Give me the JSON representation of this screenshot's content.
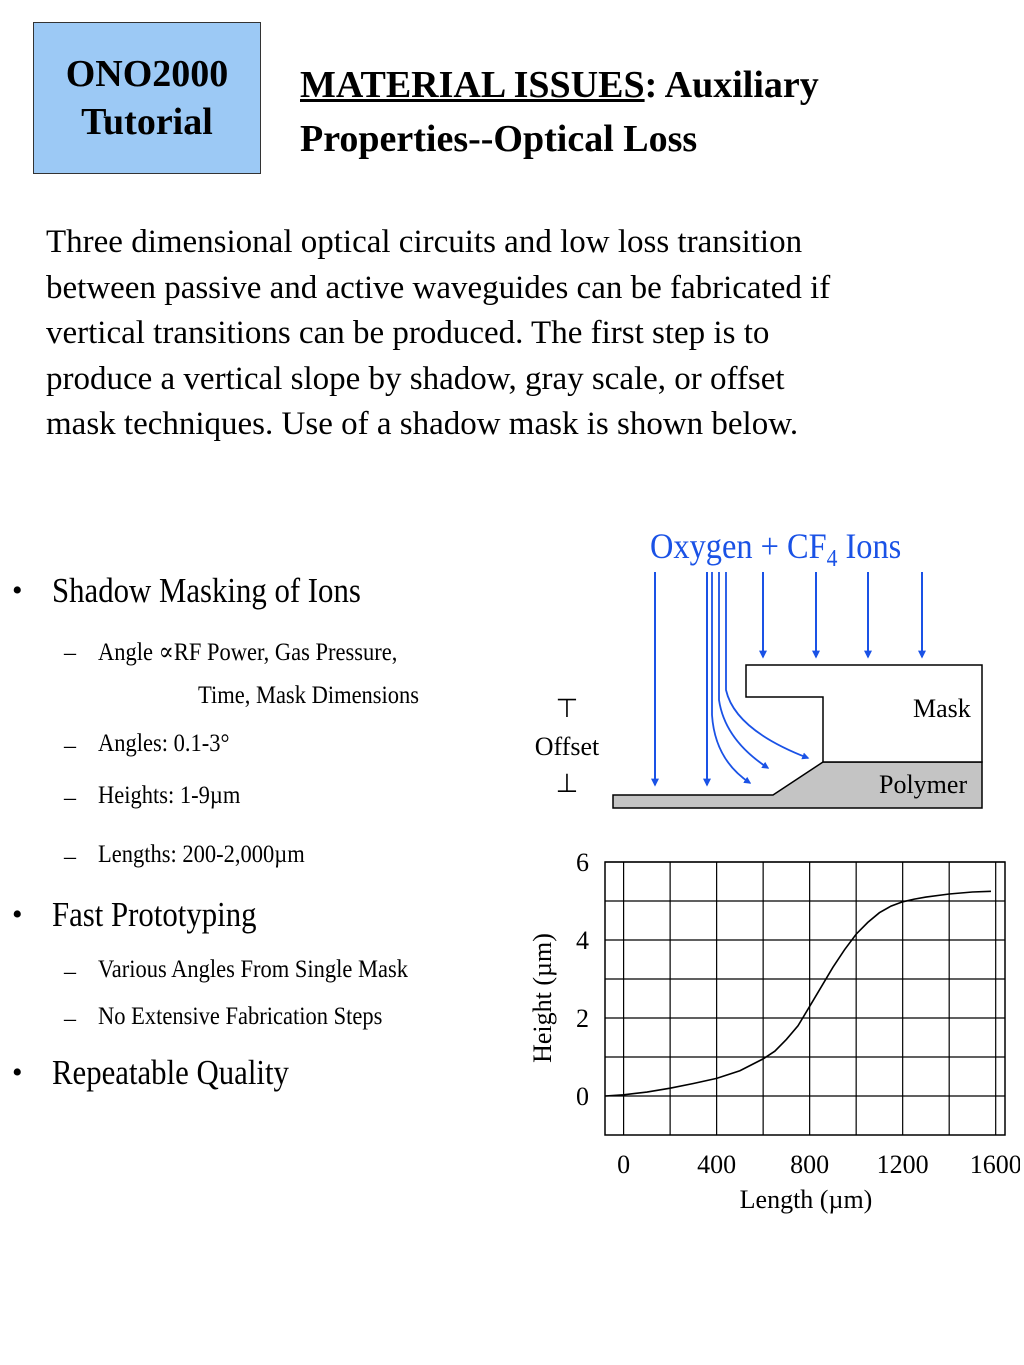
{
  "badge": {
    "line1": "ONO2000",
    "line2": "Tutorial"
  },
  "title": {
    "underlined": "MATERIAL ISSUES",
    "rest": ":  Auxiliary",
    "line2": "Properties--Optical Loss"
  },
  "intro": [
    "Three dimensional optical circuits and low loss transition",
    "between passive and active waveguides can be fabricated if",
    "vertical transitions can be produced.  The first step is to",
    "produce a vertical slope by shadow, gray scale, or offset",
    "mask techniques.  Use of a shadow mask is shown below."
  ],
  "bullets": {
    "b1": "Shadow Masking of Ions",
    "b1_sub": {
      "angle_a": "Angle ",
      "angle_sym": "∝",
      "angle_b": "RF Power, Gas Pressure,",
      "angle_c": "Time, Mask Dimensions",
      "angles": "Angles:   0.1-3°",
      "heights": "Heights:  1-9µm",
      "lengths": "Lengths:  200-2,000µm"
    },
    "b2": "Fast Prototyping",
    "b2_sub": {
      "s1": "Various Angles From Single Mask",
      "s2": "No Extensive Fabrication Steps"
    },
    "b3": "Repeatable Quality",
    "bullet_char": "•",
    "dash_char": "–"
  },
  "diagram": {
    "ions_label_a": "Oxygen + CF",
    "ions_label_sub": "4",
    "ions_label_b": " Ions",
    "mask_label": "Mask",
    "polymer_label": "Polymer",
    "offset_label": "Offset",
    "offset_top": "⊤",
    "offset_bottom": "⊥",
    "arrow_color": "#1a52e6",
    "polymer_color": "#c4c4c4"
  },
  "chart_data": {
    "type": "line",
    "xlabel": "Length (µm)",
    "ylabel": "Height (µm)",
    "xlim": [
      -80,
      1640
    ],
    "ylim": [
      -1,
      6
    ],
    "xticks": [
      0,
      400,
      800,
      1200,
      1600
    ],
    "yticks": [
      0,
      2,
      4,
      6
    ],
    "grid": true,
    "series": [
      {
        "x": [
          -80,
          0,
          100,
          200,
          300,
          400,
          500,
          600,
          650,
          700,
          750,
          800,
          850,
          900,
          950,
          1000,
          1050,
          1100,
          1150,
          1200,
          1250,
          1300,
          1400,
          1500,
          1580
        ],
        "y": [
          0,
          0.03,
          0.1,
          0.2,
          0.32,
          0.45,
          0.65,
          0.95,
          1.15,
          1.45,
          1.8,
          2.3,
          2.8,
          3.3,
          3.75,
          4.15,
          4.45,
          4.7,
          4.87,
          4.98,
          5.05,
          5.1,
          5.18,
          5.23,
          5.25
        ]
      }
    ],
    "line_color": "#000000"
  }
}
